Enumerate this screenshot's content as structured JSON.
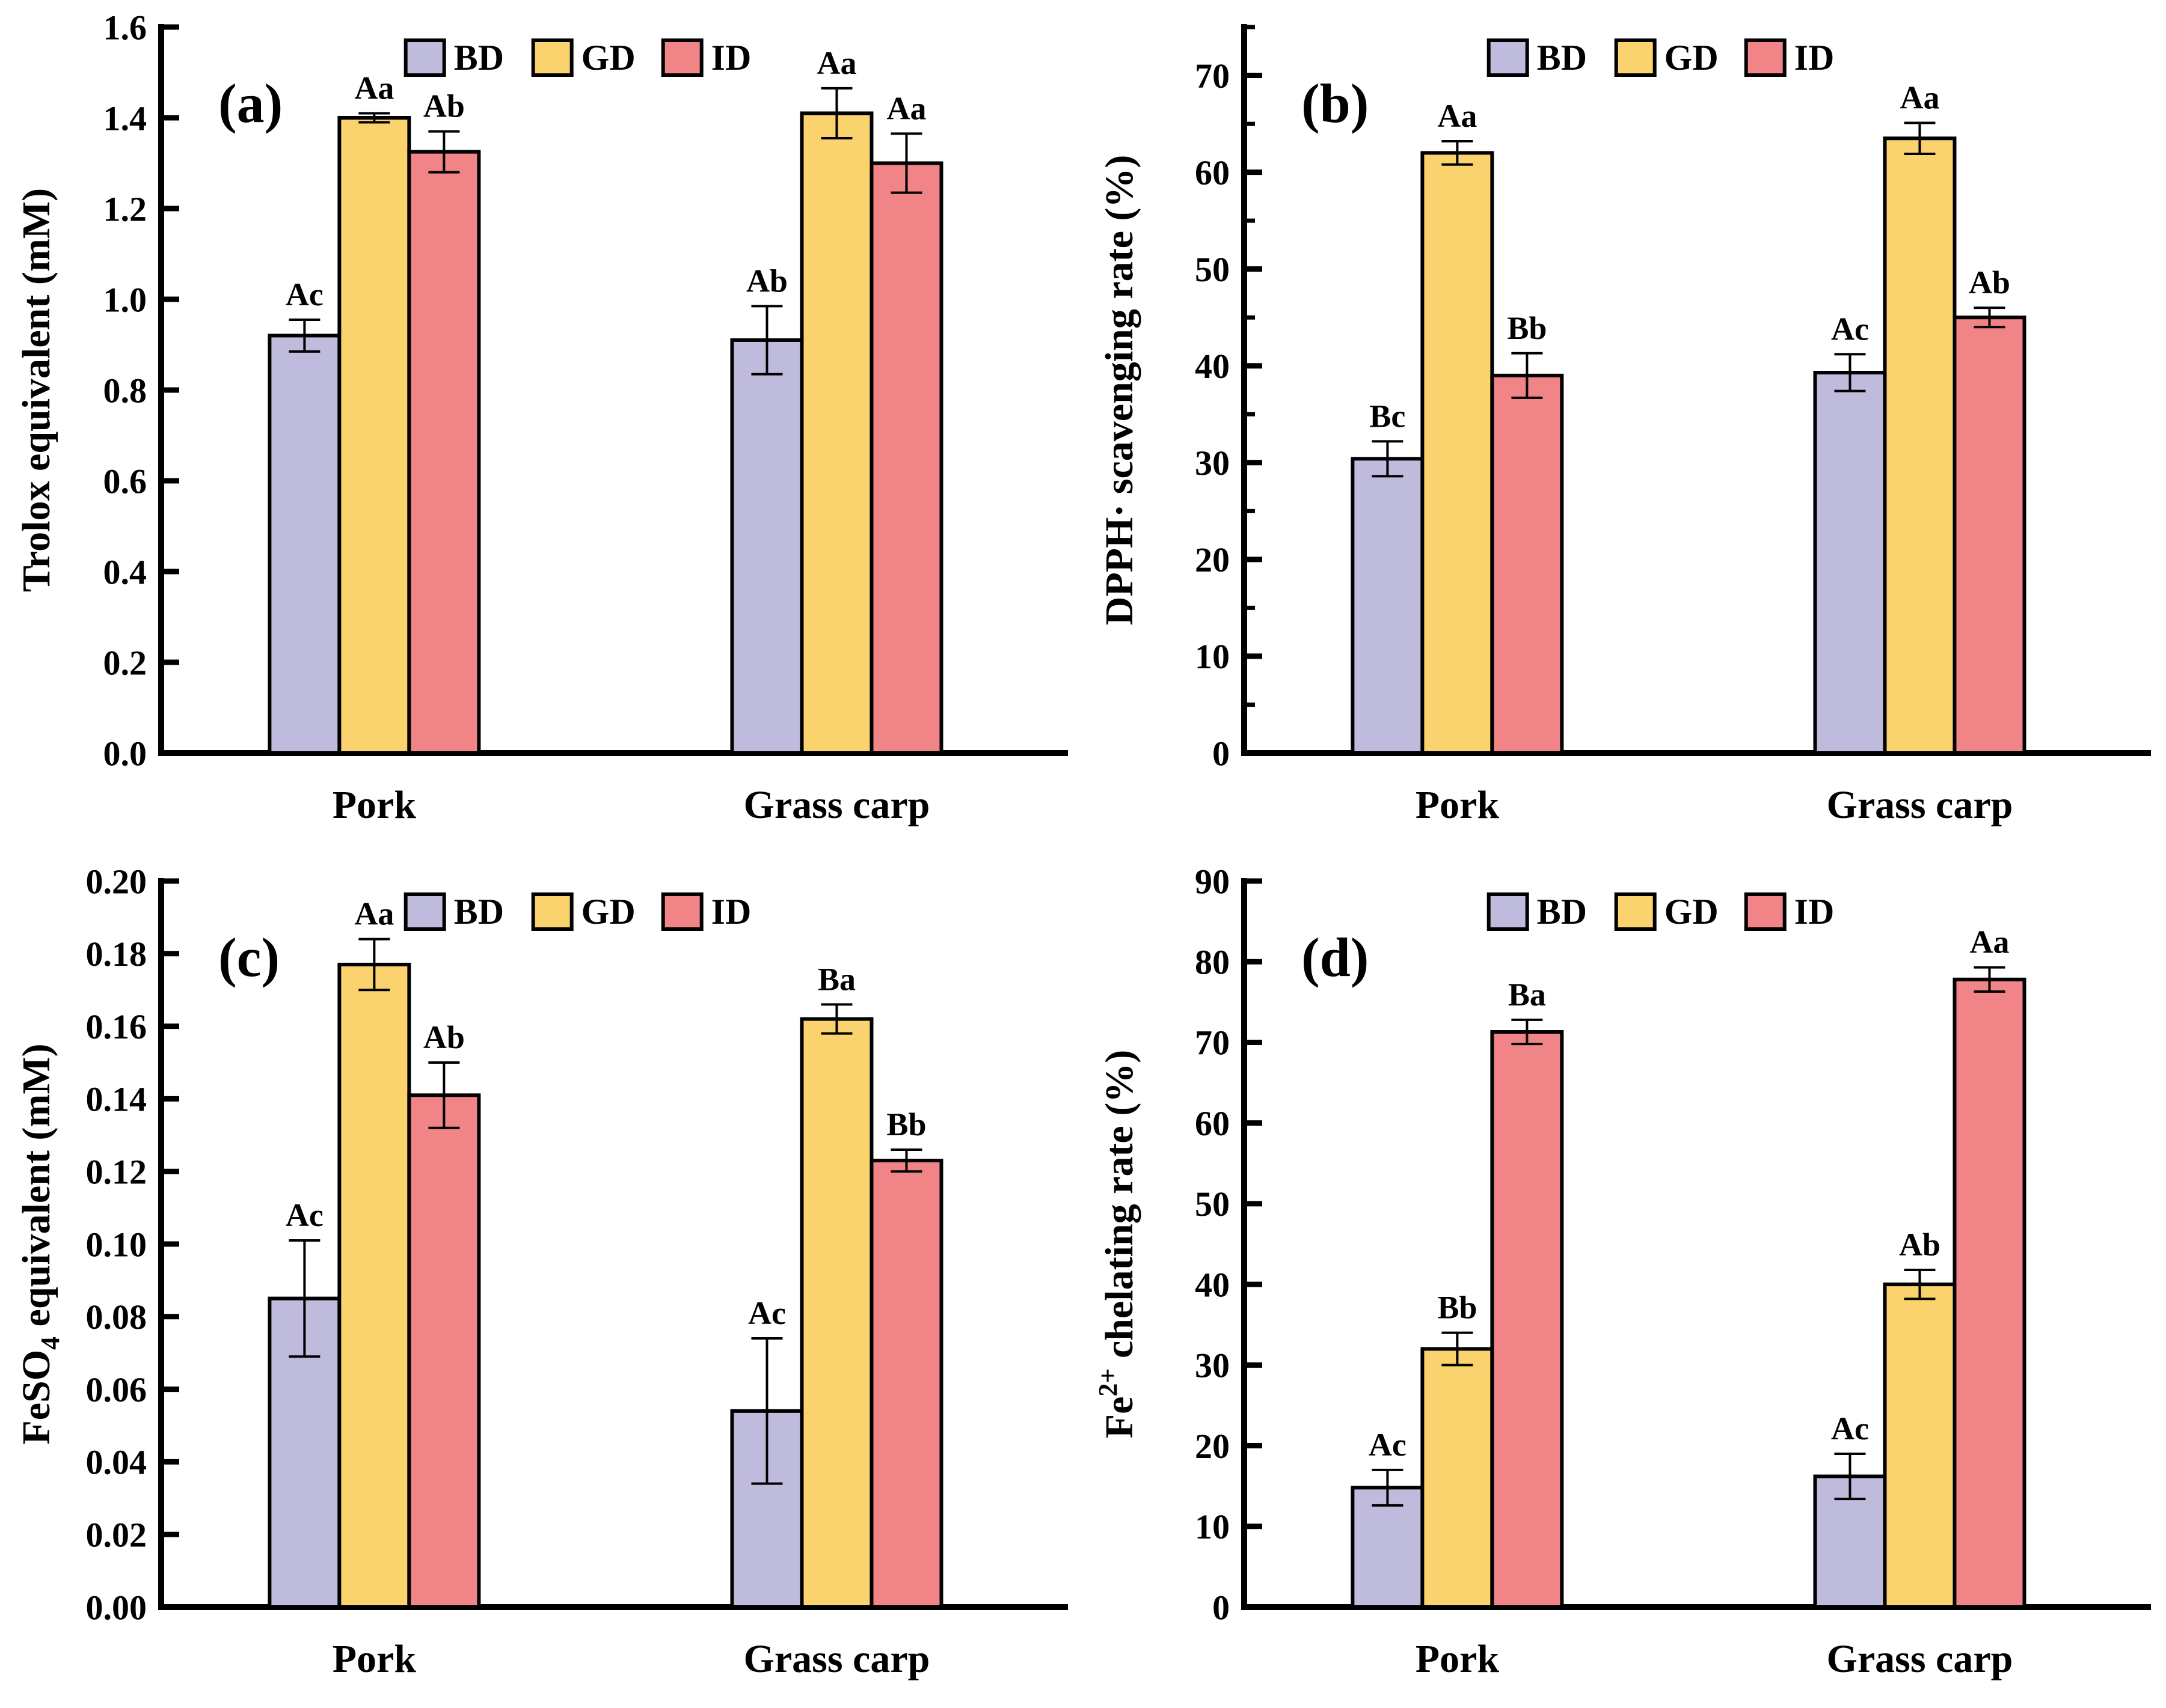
{
  "figure": {
    "background": "#ffffff",
    "axis_color": "#000000",
    "text_color": "#000000",
    "legend_labels": [
      "BD",
      "GD",
      "ID"
    ],
    "series_colors": {
      "BD": "#bfbbdc",
      "GD": "#fad36e",
      "ID": "#f08486"
    },
    "categories": [
      "Pork",
      "Grass carp"
    ]
  },
  "chart_data": [
    {
      "type": "bar",
      "panel_tag": "(a)",
      "ylabel": "Trolox equivalent (mM)",
      "ylabel_parts": [
        {
          "t": "Trolox equivalent (mM)"
        }
      ],
      "categories": [
        "Pork",
        "Grass carp"
      ],
      "ylim": [
        0,
        1.6
      ],
      "axis_top": 1.6,
      "ytick_step": 0.2,
      "yminor_step": null,
      "decimals": 1,
      "grid": false,
      "legend_position": "top-center",
      "series": [
        {
          "name": "BD",
          "values": [
            0.92,
            0.91
          ],
          "errors": [
            0.035,
            0.075
          ],
          "sig_labels": [
            "Ac",
            "Ab"
          ]
        },
        {
          "name": "GD",
          "values": [
            1.4,
            1.41
          ],
          "errors": [
            0.01,
            0.055
          ],
          "sig_labels": [
            "Aa",
            "Aa"
          ]
        },
        {
          "name": "ID",
          "values": [
            1.325,
            1.3
          ],
          "errors": [
            0.045,
            0.065
          ],
          "sig_labels": [
            "Ab",
            "Aa"
          ]
        }
      ]
    },
    {
      "type": "bar",
      "panel_tag": "(b)",
      "ylabel": "DPPH· scavenging rate (%)",
      "ylabel_parts": [
        {
          "t": "DPPH· scavenging rate (%)"
        }
      ],
      "categories": [
        "Pork",
        "Grass carp"
      ],
      "ylim": [
        0,
        75
      ],
      "axis_top": 75,
      "ytick_step": 10,
      "yminor_step": 5,
      "decimals": 0,
      "grid": false,
      "legend_position": "top-center",
      "series": [
        {
          "name": "BD",
          "values": [
            30.4,
            39.3
          ],
          "errors": [
            1.8,
            1.9
          ],
          "sig_labels": [
            "Bc",
            "Ac"
          ]
        },
        {
          "name": "GD",
          "values": [
            62.0,
            63.5
          ],
          "errors": [
            1.2,
            1.6
          ],
          "sig_labels": [
            "Aa",
            "Aa"
          ]
        },
        {
          "name": "ID",
          "values": [
            39.0,
            45.0
          ],
          "errors": [
            2.3,
            1.0
          ],
          "sig_labels": [
            "Bb",
            "Ab"
          ]
        }
      ]
    },
    {
      "type": "bar",
      "panel_tag": "(c)",
      "ylabel": "FeSO4 equivalent (mM)",
      "ylabel_parts": [
        {
          "t": "FeSO"
        },
        {
          "t": "4",
          "style": "sub"
        },
        {
          "t": " equivalent (mM)"
        }
      ],
      "categories": [
        "Pork",
        "Grass carp"
      ],
      "ylim": [
        0,
        0.2
      ],
      "axis_top": 0.2,
      "ytick_step": 0.02,
      "yminor_step": null,
      "decimals": 2,
      "grid": false,
      "legend_position": "top-center",
      "series": [
        {
          "name": "BD",
          "values": [
            0.085,
            0.054
          ],
          "errors": [
            0.016,
            0.02
          ],
          "sig_labels": [
            "Ac",
            "Ac"
          ]
        },
        {
          "name": "GD",
          "values": [
            0.177,
            0.162
          ],
          "errors": [
            0.007,
            0.004
          ],
          "sig_labels": [
            "Aa",
            "Ba"
          ]
        },
        {
          "name": "ID",
          "values": [
            0.141,
            0.123
          ],
          "errors": [
            0.009,
            0.003
          ],
          "sig_labels": [
            "Ab",
            "Bb"
          ]
        }
      ]
    },
    {
      "type": "bar",
      "panel_tag": "(d)",
      "ylabel": "Fe2+ chelating rate (%)",
      "ylabel_parts": [
        {
          "t": "Fe"
        },
        {
          "t": "2+",
          "style": "sup"
        },
        {
          "t": " chelating rate (%)"
        }
      ],
      "categories": [
        "Pork",
        "Grass carp"
      ],
      "ylim": [
        0,
        90
      ],
      "axis_top": 90,
      "ytick_step": 10,
      "yminor_step": null,
      "decimals": 0,
      "grid": false,
      "legend_position": "top-center",
      "series": [
        {
          "name": "BD",
          "values": [
            14.8,
            16.2
          ],
          "errors": [
            2.2,
            2.8
          ],
          "sig_labels": [
            "Ac",
            "Ac"
          ]
        },
        {
          "name": "GD",
          "values": [
            32.0,
            40.0
          ],
          "errors": [
            2.0,
            1.8
          ],
          "sig_labels": [
            "Bb",
            "Ab"
          ]
        },
        {
          "name": "ID",
          "values": [
            71.3,
            77.8
          ],
          "errors": [
            1.5,
            1.5
          ],
          "sig_labels": [
            "Ba",
            "Aa"
          ]
        }
      ]
    }
  ]
}
